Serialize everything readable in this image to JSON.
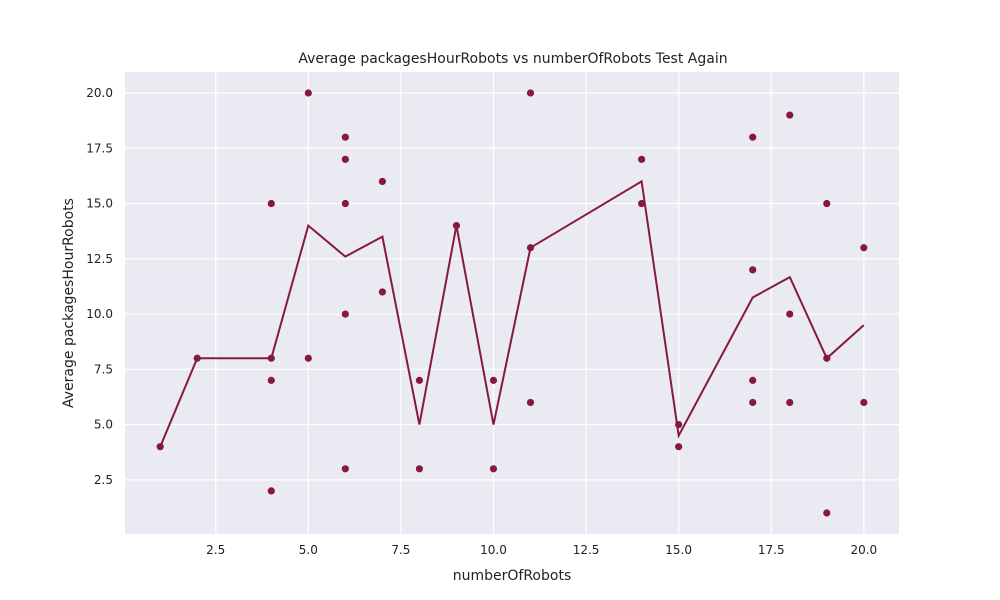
{
  "chart_data": {
    "type": "scatter",
    "title": "Average packagesHourRobots vs numberOfRobots Test Again",
    "xlabel": "numberOfRobots",
    "ylabel": "Average packagesHourRobots",
    "xlim": [
      0.05,
      20.95
    ],
    "ylim": [
      0.05,
      20.95
    ],
    "x_ticks": [
      2.5,
      5.0,
      7.5,
      10.0,
      12.5,
      15.0,
      17.5,
      20.0
    ],
    "x_tick_labels": [
      "2.5",
      "5.0",
      "7.5",
      "10.0",
      "12.5",
      "15.0",
      "17.5",
      "20.0"
    ],
    "y_ticks": [
      2.5,
      5.0,
      7.5,
      10.0,
      12.5,
      15.0,
      17.5,
      20.0
    ],
    "y_tick_labels": [
      "2.5",
      "5.0",
      "7.5",
      "10.0",
      "12.5",
      "15.0",
      "17.5",
      "20.0"
    ],
    "grid": true,
    "background_color": "#eaeaf2",
    "grid_color": "#ffffff",
    "series_color": "#87193f",
    "points": [
      {
        "x": 1,
        "y": 4
      },
      {
        "x": 2,
        "y": 8
      },
      {
        "x": 4,
        "y": 15
      },
      {
        "x": 4,
        "y": 8
      },
      {
        "x": 4,
        "y": 7
      },
      {
        "x": 4,
        "y": 2
      },
      {
        "x": 5,
        "y": 20
      },
      {
        "x": 5,
        "y": 8
      },
      {
        "x": 6,
        "y": 18
      },
      {
        "x": 6,
        "y": 17
      },
      {
        "x": 6,
        "y": 15
      },
      {
        "x": 6,
        "y": 10
      },
      {
        "x": 6,
        "y": 3
      },
      {
        "x": 7,
        "y": 16
      },
      {
        "x": 7,
        "y": 11
      },
      {
        "x": 8,
        "y": 7
      },
      {
        "x": 8,
        "y": 3
      },
      {
        "x": 9,
        "y": 14
      },
      {
        "x": 10,
        "y": 7
      },
      {
        "x": 10,
        "y": 3
      },
      {
        "x": 11,
        "y": 20
      },
      {
        "x": 11,
        "y": 13
      },
      {
        "x": 11,
        "y": 6
      },
      {
        "x": 14,
        "y": 17
      },
      {
        "x": 14,
        "y": 15
      },
      {
        "x": 15,
        "y": 5
      },
      {
        "x": 15,
        "y": 4
      },
      {
        "x": 17,
        "y": 18
      },
      {
        "x": 17,
        "y": 12
      },
      {
        "x": 17,
        "y": 7
      },
      {
        "x": 17,
        "y": 6
      },
      {
        "x": 18,
        "y": 19
      },
      {
        "x": 18,
        "y": 10
      },
      {
        "x": 18,
        "y": 6
      },
      {
        "x": 19,
        "y": 15
      },
      {
        "x": 19,
        "y": 8
      },
      {
        "x": 19,
        "y": 1
      },
      {
        "x": 20,
        "y": 13
      },
      {
        "x": 20,
        "y": 6
      }
    ],
    "mean_line": {
      "x": [
        1,
        2,
        4,
        5,
        6,
        7,
        8,
        9,
        10,
        11,
        14,
        15,
        17,
        18,
        19,
        20
      ],
      "y": [
        4,
        8,
        8,
        14,
        12.6,
        13.5,
        5,
        14,
        5,
        13,
        16,
        4.5,
        10.75,
        11.67,
        8,
        9.5
      ]
    }
  }
}
